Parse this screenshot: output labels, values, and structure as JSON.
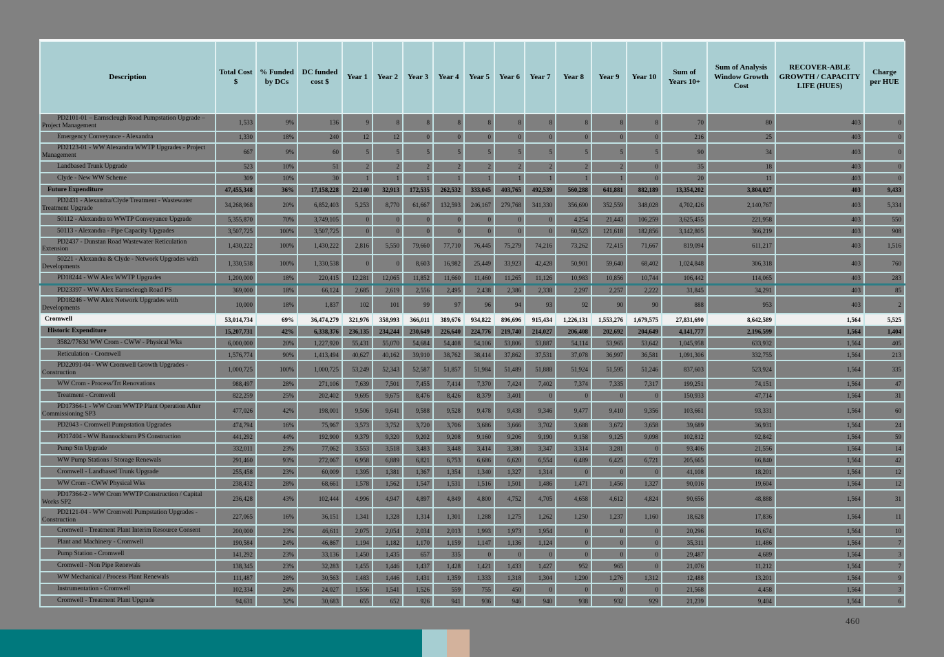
{
  "page": {
    "number": "460"
  },
  "colors": {
    "canvas_bg": "#818181",
    "page_bg": "#ffffff",
    "header_bg": "#a9ced2",
    "row_highlight": "#7f7f7f",
    "group_row_bg": "#efefef",
    "grid_line": "#c2e4e6",
    "rule_line": "#2b7d85",
    "footer_teal": "#00797d",
    "footer_square_blue": "#a6ced2",
    "footer_square_tan": "#d3b29c"
  },
  "table": {
    "headers": [
      "Description",
      "Total Cost\n$",
      "% Funded\nby DCs",
      "DC funded\ncost $",
      "Year 1",
      "Year 2",
      "Year 3",
      "Year 4",
      "Year 5",
      "Year 6",
      "Year 7",
      "Year 8",
      "Year 9",
      "Year 10",
      "Sum of\nYears 10+",
      "Sum of Analysis\nWindow Growth\nCost",
      "RECOVER-ABLE\nGROWTH / CAPACITY\nLIFE (HUES)",
      "Charge\nper HUE"
    ],
    "rows": [
      {
        "style": "item",
        "desc": "PD2101-01 – Earnscleugh Road Pumpstation Upgrade – Project Management",
        "values": [
          "1,533",
          "9%",
          "136",
          "9",
          "8",
          "8",
          "8",
          "8",
          "8",
          "8",
          "8",
          "8",
          "8",
          "70",
          "80",
          "403",
          "0"
        ]
      },
      {
        "style": "item",
        "desc": "Emergency Conveyance - Alexandra",
        "values": [
          "1,330",
          "18%",
          "240",
          "12",
          "12",
          "0",
          "0",
          "0",
          "0",
          "0",
          "0",
          "0",
          "0",
          "216",
          "25",
          "403",
          "0"
        ]
      },
      {
        "style": "item",
        "desc": "PD2123-01 - WW Alexandra WWTP Upgrades - Project Management",
        "values": [
          "667",
          "9%",
          "60",
          "5",
          "5",
          "5",
          "5",
          "5",
          "5",
          "5",
          "5",
          "5",
          "5",
          "90",
          "34",
          "403",
          "0"
        ]
      },
      {
        "style": "item",
        "desc": "Landbased Trunk Upgrade",
        "values": [
          "523",
          "10%",
          "51",
          "2",
          "2",
          "2",
          "2",
          "2",
          "2",
          "2",
          "2",
          "2",
          "0",
          "35",
          "18",
          "403",
          "0"
        ]
      },
      {
        "style": "item",
        "desc": "Clyde - New WW Scheme",
        "values": [
          "309",
          "10%",
          "30",
          "1",
          "1",
          "1",
          "1",
          "1",
          "1",
          "1",
          "1",
          "1",
          "0",
          "20",
          "11",
          "403",
          "0"
        ]
      },
      {
        "style": "section",
        "desc": "Future Expenditure",
        "values": [
          "47,455,348",
          "36%",
          "17,158,228",
          "22,140",
          "32,913",
          "172,535",
          "262,532",
          "333,045",
          "403,765",
          "492,539",
          "560,288",
          "641,881",
          "882,189",
          "13,354,202",
          "3,804,027",
          "403",
          "9,433"
        ]
      },
      {
        "style": "item",
        "desc": "PD2431 - Alexandra/Clyde Treatment - Wastewater Treatment Upgrade",
        "values": [
          "34,268,968",
          "20%",
          "6,852,403",
          "5,253",
          "8,770",
          "61,667",
          "132,593",
          "246,167",
          "279,768",
          "341,330",
          "356,690",
          "352,559",
          "348,028",
          "4,702,426",
          "2,140,767",
          "403",
          "5,334"
        ]
      },
      {
        "style": "item",
        "desc": "50112 - Alexandra to WWTP Conveyance Upgrade",
        "values": [
          "5,355,870",
          "70%",
          "3,749,105",
          "0",
          "0",
          "0",
          "0",
          "0",
          "0",
          "0",
          "4,254",
          "21,443",
          "106,259",
          "3,625,455",
          "221,958",
          "403",
          "550"
        ]
      },
      {
        "style": "item",
        "desc": "50113 - Alexandra - Pipe Capacity Upgrades",
        "values": [
          "3,507,725",
          "100%",
          "3,507,725",
          "0",
          "0",
          "0",
          "0",
          "0",
          "0",
          "0",
          "60,523",
          "121,618",
          "182,856",
          "3,142,805",
          "366,219",
          "403",
          "908"
        ]
      },
      {
        "style": "item",
        "desc": "PD2437 - Dunstan Road Wastewater Reticulation Extension",
        "values": [
          "1,430,222",
          "100%",
          "1,430,222",
          "2,816",
          "5,550",
          "79,660",
          "77,710",
          "76,445",
          "75,279",
          "74,216",
          "73,262",
          "72,415",
          "71,667",
          "819,094",
          "611,217",
          "403",
          "1,516"
        ]
      },
      {
        "style": "item",
        "desc": "50221 - Alexandra & Clyde - Network Upgrades with Developments",
        "values": [
          "1,330,538",
          "100%",
          "1,330,538",
          "0",
          "0",
          "8,603",
          "16,982",
          "25,449",
          "33,923",
          "42,428",
          "50,901",
          "59,640",
          "68,402",
          "1,024,848",
          "306,318",
          "403",
          "760"
        ]
      },
      {
        "style": "item",
        "rule": true,
        "desc": "PD18244 - WW Alex WWTP Upgrades",
        "values": [
          "1,200,000",
          "18%",
          "220,415",
          "12,281",
          "12,065",
          "11,852",
          "11,660",
          "11,460",
          "11,265",
          "11,126",
          "10,983",
          "10,856",
          "10,744",
          "106,442",
          "114,065",
          "403",
          "283"
        ]
      },
      {
        "style": "item",
        "desc": "PD23397 - WW Alex Earnscleugh Road PS",
        "values": [
          "369,000",
          "18%",
          "66,124",
          "2,685",
          "2,619",
          "2,556",
          "2,495",
          "2,438",
          "2,386",
          "2,338",
          "2,297",
          "2,257",
          "2,222",
          "31,845",
          "34,291",
          "403",
          "85"
        ]
      },
      {
        "style": "item",
        "desc": "PD18246 - WW Alex Network Upgrades with Developments",
        "values": [
          "10,000",
          "18%",
          "1,837",
          "102",
          "101",
          "99",
          "97",
          "96",
          "94",
          "93",
          "92",
          "90",
          "90",
          "888",
          "953",
          "403",
          "2"
        ]
      },
      {
        "style": "group",
        "desc": "Cromwell",
        "values": [
          "53,014,734",
          "69%",
          "36,474,279",
          "321,976",
          "358,993",
          "366,011",
          "389,676",
          "934,822",
          "896,696",
          "915,434",
          "1,226,131",
          "1,553,276",
          "1,679,575",
          "27,831,690",
          "8,642,589",
          "1,564",
          "5,525"
        ]
      },
      {
        "style": "section",
        "desc": "Historic Expenditure",
        "values": [
          "15,207,731",
          "42%",
          "6,338,376",
          "236,135",
          "234,244",
          "230,649",
          "226,640",
          "224,776",
          "219,740",
          "214,027",
          "206,408",
          "202,692",
          "204,649",
          "4,141,777",
          "2,196,599",
          "1,564",
          "1,404"
        ]
      },
      {
        "style": "item",
        "desc": "3582/7763d WW Crom - CWW - Physical Wks",
        "values": [
          "6,000,000",
          "20%",
          "1,227,920",
          "55,431",
          "55,070",
          "54,684",
          "54,408",
          "54,106",
          "53,806",
          "53,887",
          "54,114",
          "53,965",
          "53,642",
          "1,045,958",
          "633,932",
          "1,564",
          "405"
        ]
      },
      {
        "style": "item",
        "desc": "Reticulation - Cromwell",
        "values": [
          "1,576,774",
          "90%",
          "1,413,494",
          "40,627",
          "40,162",
          "39,910",
          "38,762",
          "38,414",
          "37,862",
          "37,531",
          "37,078",
          "36,997",
          "36,581",
          "1,091,306",
          "332,755",
          "1,564",
          "213"
        ]
      },
      {
        "style": "item",
        "desc": "PD22091-04 - WW Cromwell Growth Upgrades - Construction",
        "values": [
          "1,000,725",
          "100%",
          "1,000,725",
          "53,249",
          "52,343",
          "52,587",
          "51,857",
          "51,984",
          "51,489",
          "51,888",
          "51,924",
          "51,595",
          "51,246",
          "837,603",
          "523,924",
          "1,564",
          "335"
        ]
      },
      {
        "style": "item",
        "desc": "WW Crom - Process/Trt Renovations",
        "values": [
          "988,497",
          "28%",
          "271,106",
          "7,639",
          "7,501",
          "7,455",
          "7,414",
          "7,370",
          "7,424",
          "7,402",
          "7,374",
          "7,335",
          "7,317",
          "199,251",
          "74,151",
          "1,564",
          "47"
        ]
      },
      {
        "style": "item",
        "desc": "Treatment - Cromwell",
        "values": [
          "822,259",
          "25%",
          "202,402",
          "9,695",
          "9,675",
          "8,476",
          "8,426",
          "8,379",
          "3,401",
          "0",
          "0",
          "0",
          "0",
          "150,933",
          "47,714",
          "1,564",
          "31"
        ]
      },
      {
        "style": "item",
        "desc": "PD17364-1 - WW Crom WWTP Plant Operation After Commissioning SP3",
        "values": [
          "477,026",
          "42%",
          "198,001",
          "9,506",
          "9,641",
          "9,588",
          "9,528",
          "9,478",
          "9,438",
          "9,346",
          "9,477",
          "9,410",
          "9,356",
          "103,661",
          "93,331",
          "1,564",
          "60"
        ]
      },
      {
        "style": "item",
        "desc": "PD2043 - Cromwell Pumpstation Upgrades",
        "values": [
          "474,794",
          "16%",
          "75,967",
          "3,573",
          "3,752",
          "3,720",
          "3,706",
          "3,686",
          "3,666",
          "3,702",
          "3,688",
          "3,672",
          "3,658",
          "39,689",
          "36,931",
          "1,564",
          "24"
        ]
      },
      {
        "style": "item",
        "desc": "PD17404 - WW Bannockburn PS Construction",
        "values": [
          "441,292",
          "44%",
          "192,900",
          "9,379",
          "9,320",
          "9,202",
          "9,208",
          "9,160",
          "9,206",
          "9,190",
          "9,158",
          "9,125",
          "9,098",
          "102,812",
          "92,842",
          "1,564",
          "59"
        ]
      },
      {
        "style": "item",
        "desc": "Pump Stn Upgrade",
        "values": [
          "332,011",
          "23%",
          "77,062",
          "3,553",
          "3,518",
          "3,483",
          "3,448",
          "3,414",
          "3,380",
          "3,347",
          "3,314",
          "3,281",
          "0",
          "93,406",
          "21,556",
          "1,564",
          "14"
        ]
      },
      {
        "style": "item",
        "desc": "WW Pump Stations / Storage Renewals",
        "values": [
          "291,460",
          "93%",
          "272,067",
          "6,958",
          "6,889",
          "6,821",
          "6,753",
          "6,686",
          "6,620",
          "6,554",
          "6,489",
          "6,425",
          "6,721",
          "205,665",
          "66,840",
          "1,564",
          "42"
        ]
      },
      {
        "style": "item",
        "desc": "Cromwell - Landbased Trunk Upgrade",
        "values": [
          "255,458",
          "23%",
          "60,009",
          "1,395",
          "1,381",
          "1,367",
          "1,354",
          "1,340",
          "1,327",
          "1,314",
          "0",
          "0",
          "0",
          "41,108",
          "18,201",
          "1,564",
          "12"
        ]
      },
      {
        "style": "item",
        "desc": "WW Crom - CWW Physical Wks",
        "values": [
          "238,432",
          "28%",
          "68,661",
          "1,578",
          "1,562",
          "1,547",
          "1,531",
          "1,516",
          "1,501",
          "1,486",
          "1,471",
          "1,456",
          "1,327",
          "90,016",
          "19,604",
          "1,564",
          "12"
        ]
      },
      {
        "style": "item",
        "desc": "PD17364-2 - WW Crom WWTP Construction / Capital Works SP2",
        "values": [
          "236,428",
          "43%",
          "102,444",
          "4,996",
          "4,947",
          "4,897",
          "4,849",
          "4,800",
          "4,752",
          "4,705",
          "4,658",
          "4,612",
          "4,824",
          "90,656",
          "48,888",
          "1,564",
          "31"
        ]
      },
      {
        "style": "item",
        "desc": "PD2121-04 - WW Cromwell Pumpstation Upgrades - Construction",
        "values": [
          "227,065",
          "16%",
          "36,151",
          "1,341",
          "1,328",
          "1,314",
          "1,301",
          "1,288",
          "1,275",
          "1,262",
          "1,250",
          "1,237",
          "1,160",
          "18,628",
          "17,836",
          "1,564",
          "11"
        ]
      },
      {
        "style": "item",
        "desc": "Cromwell - Treatment Plant Interim Resource Consent",
        "values": [
          "200,000",
          "23%",
          "46,611",
          "2,075",
          "2,054",
          "2,034",
          "2,013",
          "1,993",
          "1,973",
          "1,954",
          "0",
          "0",
          "0",
          "20,296",
          "16,674",
          "1,564",
          "10"
        ]
      },
      {
        "style": "item",
        "desc": "Plant and Machinery - Cromwell",
        "values": [
          "190,584",
          "24%",
          "46,867",
          "1,194",
          "1,182",
          "1,170",
          "1,159",
          "1,147",
          "1,136",
          "1,124",
          "0",
          "0",
          "0",
          "35,311",
          "11,486",
          "1,564",
          "7"
        ]
      },
      {
        "style": "item",
        "desc": "Pump Station - Cromwell",
        "values": [
          "141,292",
          "23%",
          "33,136",
          "1,450",
          "1,435",
          "657",
          "335",
          "0",
          "0",
          "0",
          "0",
          "0",
          "0",
          "29,487",
          "4,689",
          "1,564",
          "3"
        ]
      },
      {
        "style": "item",
        "desc": "Cromwell - Non Pipe Renewals",
        "values": [
          "138,345",
          "23%",
          "32,283",
          "1,455",
          "1,446",
          "1,437",
          "1,428",
          "1,421",
          "1,433",
          "1,427",
          "952",
          "965",
          "0",
          "21,076",
          "11,212",
          "1,564",
          "7"
        ]
      },
      {
        "style": "item",
        "desc": "WW Mechanical / Process Plant Renewals",
        "values": [
          "111,487",
          "28%",
          "30,563",
          "1,483",
          "1,446",
          "1,431",
          "1,359",
          "1,333",
          "1,318",
          "1,304",
          "1,290",
          "1,276",
          "1,312",
          "12,488",
          "13,201",
          "1,564",
          "9"
        ]
      },
      {
        "style": "item",
        "desc": "Instrumentation - Cromwell",
        "values": [
          "102,334",
          "24%",
          "24,027",
          "1,556",
          "1,541",
          "1,526",
          "559",
          "755",
          "450",
          "0",
          "0",
          "0",
          "0",
          "21,568",
          "4,458",
          "1,564",
          "3"
        ]
      },
      {
        "style": "item",
        "desc": "Cromwell - Treatment Plant Upgrade",
        "values": [
          "94,631",
          "32%",
          "30,683",
          "655",
          "652",
          "926",
          "941",
          "936",
          "946",
          "940",
          "938",
          "932",
          "929",
          "21,239",
          "9,404",
          "1,564",
          "6"
        ]
      }
    ]
  }
}
